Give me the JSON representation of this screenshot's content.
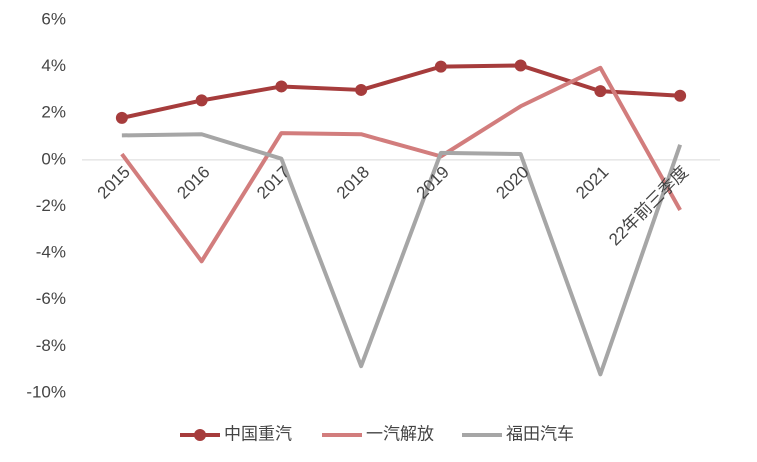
{
  "chart_data": {
    "type": "line",
    "categories": [
      "2015",
      "2016",
      "2017",
      "2018",
      "2019",
      "2020",
      "2021",
      "22年前三季度"
    ],
    "series": [
      {
        "name": "中国重汽",
        "color": "#a63c3c",
        "marker": true,
        "values": [
          1.8,
          2.55,
          3.15,
          3.0,
          4.0,
          4.05,
          2.95,
          2.75
        ]
      },
      {
        "name": "一汽解放",
        "color": "#d27d7d",
        "marker": false,
        "values": [
          0.25,
          -4.35,
          1.15,
          1.1,
          0.15,
          2.3,
          3.95,
          -2.15
        ]
      },
      {
        "name": "福田汽车",
        "color": "#a6a6a6",
        "marker": false,
        "values": [
          1.05,
          1.1,
          0.05,
          -8.85,
          0.3,
          0.25,
          -9.2,
          0.65
        ]
      }
    ],
    "ylim": [
      -10,
      6
    ],
    "yticks": [
      {
        "value": -10,
        "label": "-10%"
      },
      {
        "value": -8,
        "label": "-8%"
      },
      {
        "value": -6,
        "label": "-6%"
      },
      {
        "value": -4,
        "label": "-4%"
      },
      {
        "value": -2,
        "label": "-2%"
      },
      {
        "value": 0,
        "label": "0%"
      },
      {
        "value": 2,
        "label": "2%"
      },
      {
        "value": 4,
        "label": "4%"
      },
      {
        "value": 6,
        "label": "6%"
      }
    ],
    "grid": false,
    "legend": "bottom"
  }
}
